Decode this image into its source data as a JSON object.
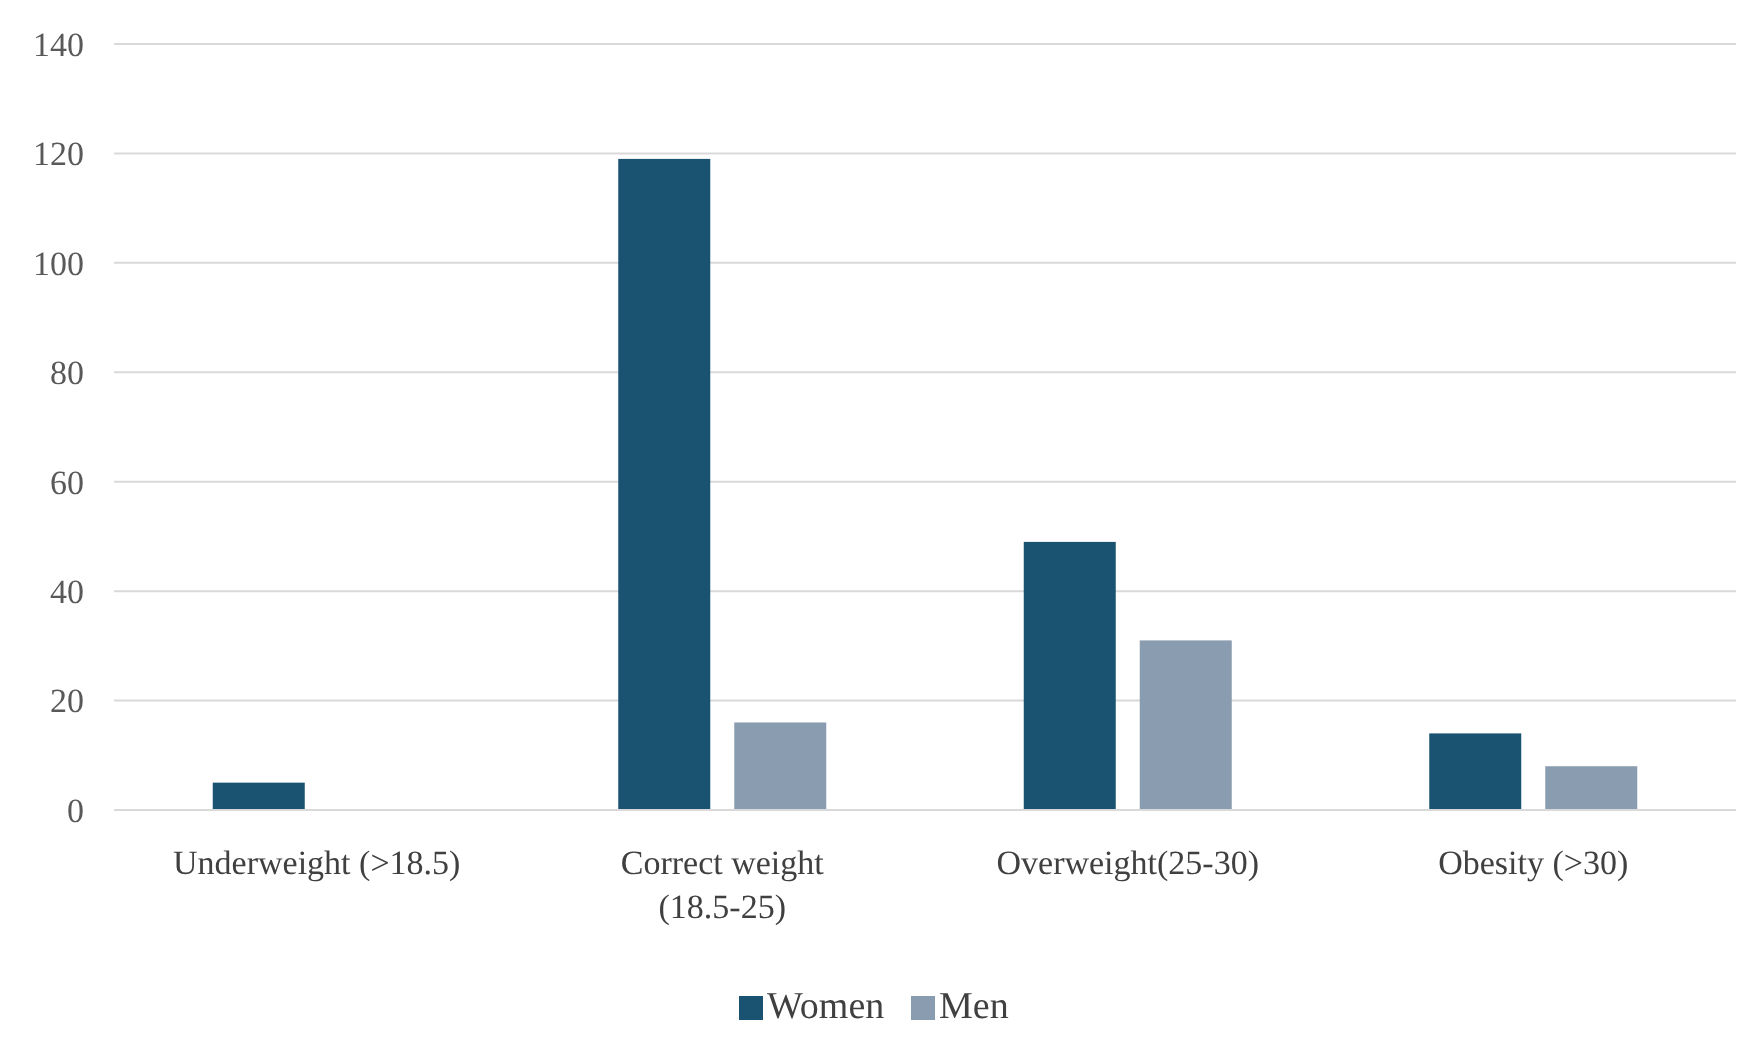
{
  "chart_data": {
    "type": "bar",
    "categories": [
      "Underweight (>18.5)",
      "Correct weight (18.5-25)",
      "Overweight(25-30)",
      "Obesity (>30)"
    ],
    "series": [
      {
        "name": "Women",
        "color": "#1a5371",
        "values": [
          5,
          119,
          49,
          14
        ]
      },
      {
        "name": "Men",
        "color": "#8a9db0",
        "values": [
          0,
          16,
          31,
          8
        ]
      }
    ],
    "ylim": [
      0,
      140
    ],
    "yticks": [
      0,
      20,
      40,
      60,
      80,
      100,
      120,
      140
    ],
    "grid": "y",
    "legend": "bottom"
  }
}
